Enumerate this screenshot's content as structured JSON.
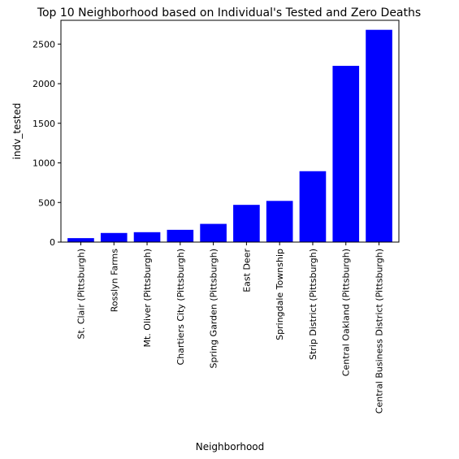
{
  "chart_data": {
    "type": "bar",
    "title": "Top 10 Neighborhood based on Individual's Tested and Zero Deaths",
    "xlabel": "Neighborhood",
    "ylabel": "indv_tested",
    "categories": [
      "St. Clair (Pittsburgh)",
      "Rosslyn Farms",
      "Mt. Oliver (Pittsburgh)",
      "Chartiers City (Pittsburgh)",
      "Spring Garden (Pittsburgh)",
      "East Deer",
      "Springdale Township",
      "Strip District (Pittsburgh)",
      "Central Oakland (Pittsburgh)",
      "Central Business District (Pittsburgh)"
    ],
    "values": [
      50,
      115,
      125,
      155,
      230,
      470,
      520,
      895,
      2225,
      2680
    ],
    "ylim": [
      0,
      2800
    ],
    "yticks": [
      0,
      500,
      1000,
      1500,
      2000,
      2500
    ],
    "bar_color": "#0000ff",
    "grid": false,
    "legend": "none"
  }
}
